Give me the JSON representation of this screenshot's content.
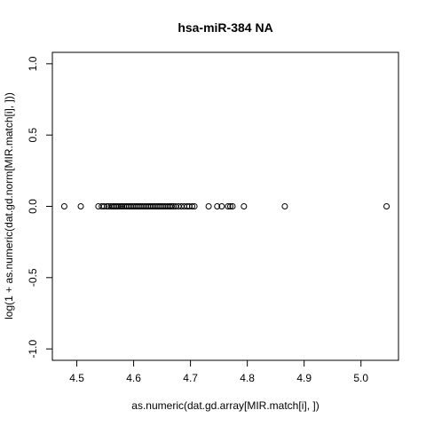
{
  "chart_data": {
    "type": "scatter",
    "title": "hsa-miR-384   NA",
    "xlabel": "as.numeric(dat.gd.array[MIR.match[i], ])",
    "ylabel": "log(1 + as.numeric(dat.gd.norm[MIR.match[i], ]))",
    "xlim": [
      4.457,
      5.066
    ],
    "ylim": [
      -1.08,
      1.08
    ],
    "grid": false,
    "x_ticks": [
      4.5,
      4.6,
      4.7,
      4.8,
      4.9,
      5.0
    ],
    "x_tick_labels": [
      "4.5",
      "4.6",
      "4.7",
      "4.8",
      "4.9",
      "5.0"
    ],
    "y_ticks": [
      -1.0,
      -0.5,
      0.0,
      0.5,
      1.0
    ],
    "y_tick_labels": [
      "-1.0",
      "-0.5",
      "0.0",
      "0.5",
      "1.0"
    ],
    "x": [
      4.478,
      4.507,
      4.538,
      4.544,
      4.548,
      4.553,
      4.556,
      4.56,
      4.563,
      4.566,
      4.569,
      4.572,
      4.575,
      4.578,
      4.58,
      4.583,
      4.586,
      4.589,
      4.592,
      4.595,
      4.598,
      4.601,
      4.604,
      4.607,
      4.61,
      4.613,
      4.616,
      4.619,
      4.622,
      4.625,
      4.628,
      4.631,
      4.634,
      4.637,
      4.64,
      4.643,
      4.646,
      4.649,
      4.652,
      4.655,
      4.658,
      4.661,
      4.664,
      4.667,
      4.67,
      4.674,
      4.679,
      4.684,
      4.689,
      4.694,
      4.698,
      4.703,
      4.707,
      4.732,
      4.747,
      4.755,
      4.766,
      4.77,
      4.774,
      4.794,
      4.866,
      5.045
    ],
    "y": [
      0,
      0,
      0,
      0,
      0,
      0,
      0,
      0,
      0,
      0,
      0,
      0,
      0,
      0,
      0,
      0,
      0,
      0,
      0,
      0,
      0,
      0,
      0,
      0,
      0,
      0,
      0,
      0,
      0,
      0,
      0,
      0,
      0,
      0,
      0,
      0,
      0,
      0,
      0,
      0,
      0,
      0,
      0,
      0,
      0,
      0,
      0,
      0,
      0,
      0,
      0,
      0,
      0,
      0,
      0,
      0,
      0,
      0,
      0,
      0,
      0,
      0
    ]
  }
}
